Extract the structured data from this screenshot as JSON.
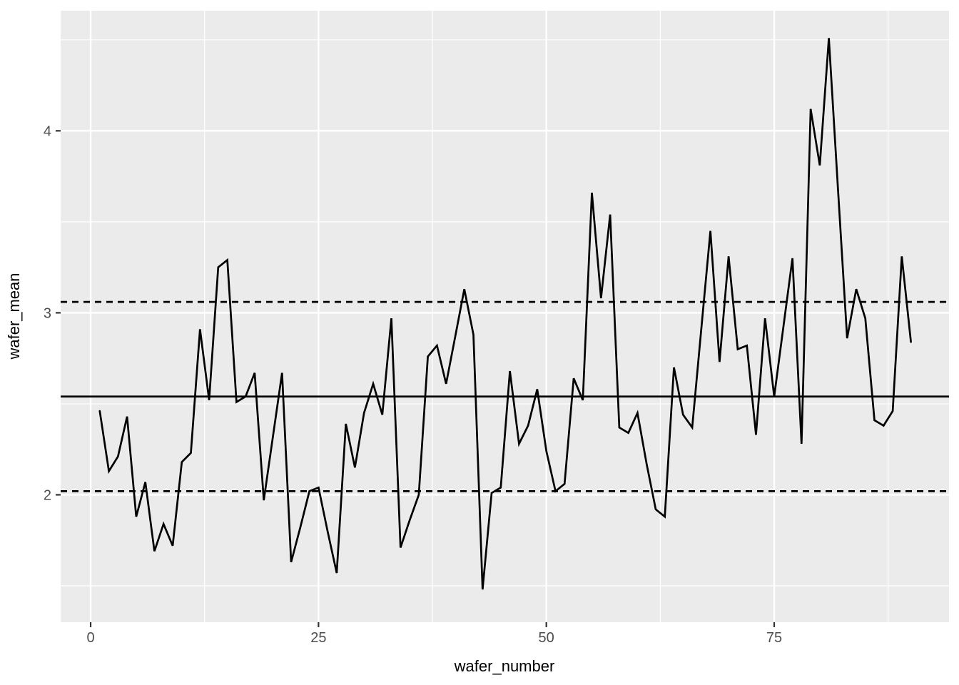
{
  "figure": {
    "background": "#FFFFFF",
    "panel_background": "#EBEBEB",
    "grid_color": "#FFFFFF",
    "tick_mark_color": "#333333",
    "tick_label_color": "#4D4D4D",
    "axis_title_color": "#000000"
  },
  "chart_data": {
    "type": "line",
    "title": "",
    "xlabel": "wafer_number",
    "ylabel": "wafer_mean",
    "series_name": "wafer_mean",
    "series_color": "#000000",
    "x_start": 1,
    "x_step": 1,
    "values": [
      2.46,
      2.13,
      2.21,
      2.43,
      1.88,
      2.07,
      1.69,
      1.84,
      1.72,
      2.18,
      2.23,
      2.91,
      2.52,
      3.25,
      3.29,
      2.51,
      2.54,
      2.67,
      1.97,
      2.32,
      2.67,
      1.63,
      1.82,
      2.02,
      2.04,
      1.8,
      1.57,
      2.39,
      2.15,
      2.45,
      2.61,
      2.44,
      2.97,
      1.71,
      1.86,
      2.0,
      2.76,
      2.82,
      2.61,
      2.87,
      3.13,
      2.88,
      1.48,
      2.01,
      2.04,
      2.68,
      2.28,
      2.38,
      2.58,
      2.24,
      2.02,
      2.06,
      2.64,
      2.52,
      3.66,
      3.08,
      3.54,
      2.37,
      2.34,
      2.45,
      2.17,
      1.92,
      1.88,
      2.7,
      2.44,
      2.37,
      2.91,
      3.45,
      2.73,
      3.31,
      2.8,
      2.82,
      2.33,
      2.97,
      2.54,
      2.92,
      3.3,
      2.28,
      4.12,
      3.81,
      4.51,
      3.68,
      2.86,
      3.13,
      2.97,
      2.41,
      2.38,
      2.46,
      3.31,
      2.84
    ],
    "reference_lines": [
      {
        "name": "center-line",
        "value": 2.54,
        "style": "solid",
        "color": "#000000"
      },
      {
        "name": "upper-control-limit",
        "value": 3.06,
        "style": "dashed",
        "color": "#000000"
      },
      {
        "name": "lower-control-limit",
        "value": 2.02,
        "style": "dashed",
        "color": "#000000"
      }
    ],
    "x_ticks": {
      "major": [
        0,
        25,
        50,
        75
      ],
      "labels": [
        "0",
        "25",
        "50",
        "75"
      ],
      "minor": [
        12.5,
        37.5,
        62.5,
        87.5
      ]
    },
    "y_ticks": {
      "major": [
        2,
        3,
        4
      ],
      "labels": [
        "2",
        "3",
        "4"
      ],
      "minor": [
        1.5,
        2.5,
        3.5,
        4.5
      ]
    },
    "xlim": [
      -3.29,
      94.18
    ],
    "ylim": [
      1.3,
      4.66
    ],
    "grid": "major+minor",
    "legend": "none"
  }
}
